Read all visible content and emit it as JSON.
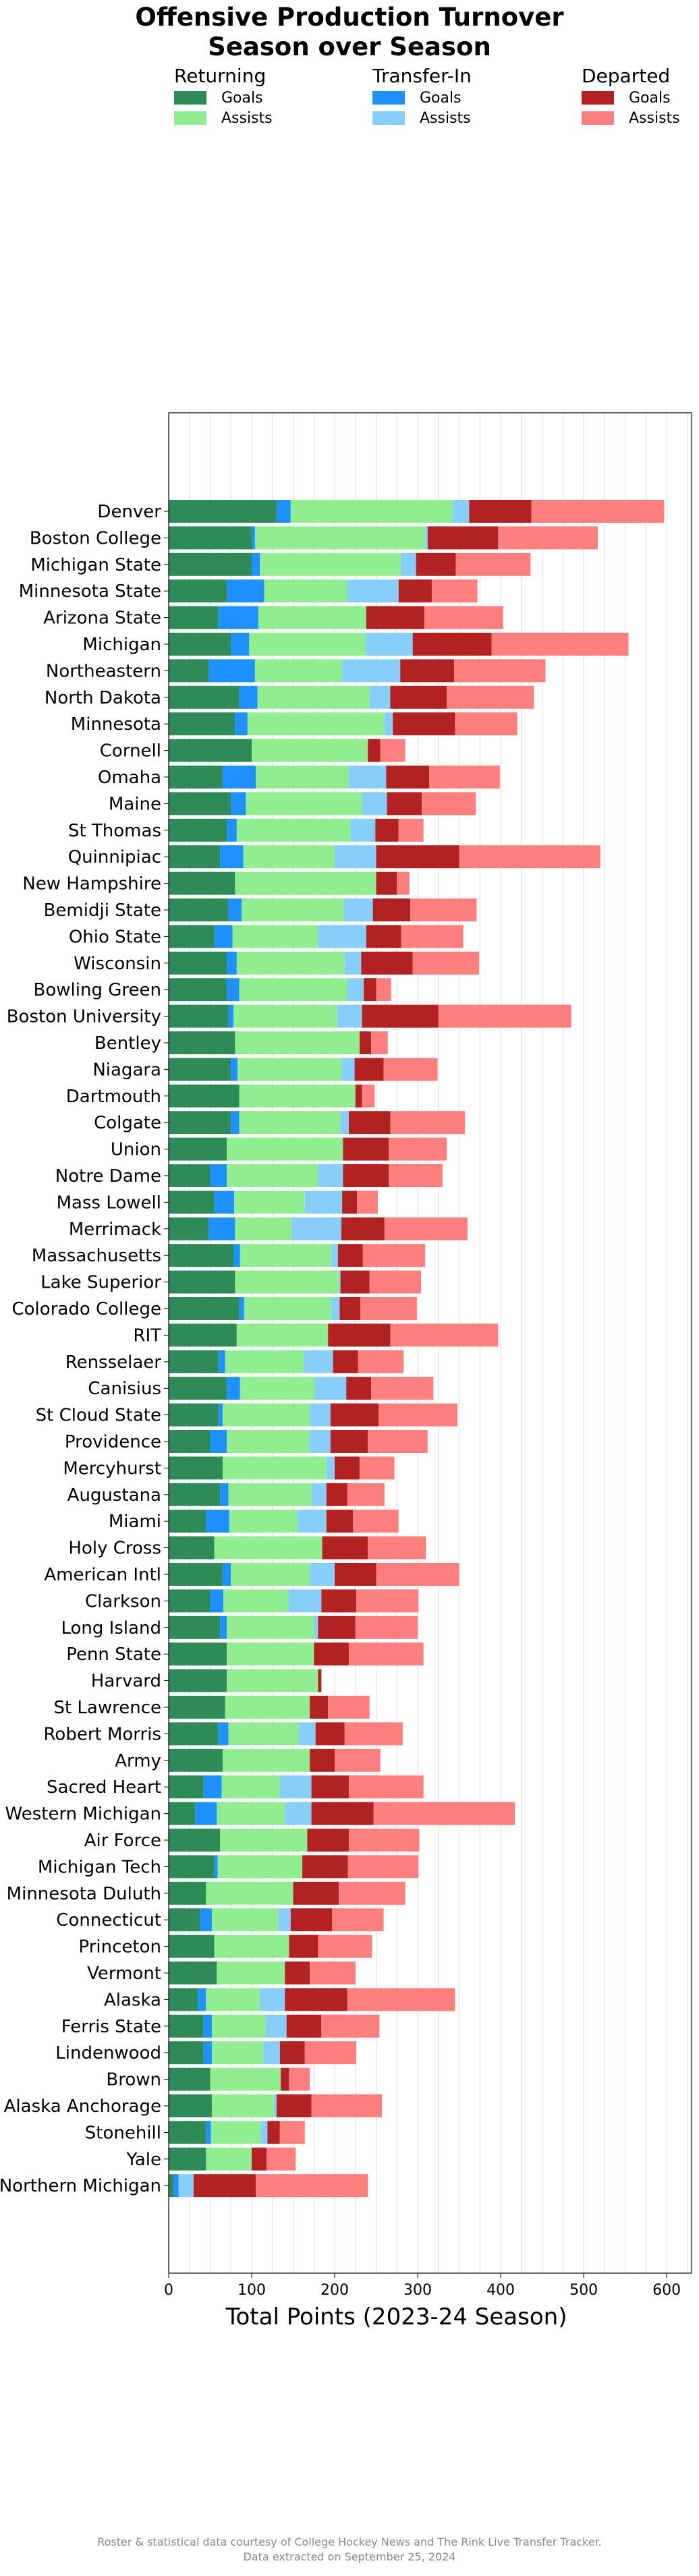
{
  "title_line1": "Offensive Production Turnover",
  "title_line2": "Season over Season",
  "legend": {
    "groups": [
      {
        "title": "Returning",
        "goals_label": "Goals",
        "assists_label": "Assists",
        "goals_color": "#2e8b57",
        "assists_color": "#90ee90"
      },
      {
        "title": "Transfer-In",
        "goals_label": "Goals",
        "assists_label": "Assists",
        "goals_color": "#1e90ff",
        "assists_color": "#87cefa"
      },
      {
        "title": "Departed",
        "goals_label": "Goals",
        "assists_label": "Assists",
        "goals_color": "#b22222",
        "assists_color": "#ff7f7f"
      }
    ]
  },
  "credit_line1": "Roster & statistical data courtesy of College Hockey News and The Rink Live Transfer Tracker.",
  "credit_line2": "Data extracted on September 25, 2024",
  "chart_data": {
    "type": "bar",
    "orientation": "horizontal",
    "stacked": true,
    "title": "Offensive Production Turnover Season over Season",
    "xlabel": "Total Points (2023-24 Season)",
    "ylabel": "",
    "xlim": [
      0,
      630
    ],
    "xticks": [
      0,
      100,
      200,
      300,
      400,
      500,
      600
    ],
    "grid": "vertical",
    "legend_position": "top",
    "categories": [
      "Denver",
      "Boston College",
      "Michigan State",
      "Minnesota State",
      "Arizona State",
      "Michigan",
      "Northeastern",
      "North Dakota",
      "Minnesota",
      "Cornell",
      "Omaha",
      "Maine",
      "St Thomas",
      "Quinnipiac",
      "New Hampshire",
      "Bemidji State",
      "Ohio State",
      "Wisconsin",
      "Bowling Green",
      "Boston University",
      "Bentley",
      "Niagara",
      "Dartmouth",
      "Colgate",
      "Union",
      "Notre Dame",
      "Mass Lowell",
      "Merrimack",
      "Massachusetts",
      "Lake Superior",
      "Colorado College",
      "RIT",
      "Rensselaer",
      "Canisius",
      "St Cloud State",
      "Providence",
      "Mercyhurst",
      "Augustana",
      "Miami",
      "Holy Cross",
      "American Intl",
      "Clarkson",
      "Long Island",
      "Penn State",
      "Harvard",
      "St Lawrence",
      "Robert Morris",
      "Army",
      "Sacred Heart",
      "Western Michigan",
      "Air Force",
      "Michigan Tech",
      "Minnesota Duluth",
      "Connecticut",
      "Princeton",
      "Vermont",
      "Alaska",
      "Ferris State",
      "Lindenwood",
      "Brown",
      "Alaska Anchorage",
      "Stonehill",
      "Yale",
      "Northern Michigan"
    ],
    "series": [
      {
        "name": "Returning Goals",
        "color": "#2e8b57",
        "values": [
          130,
          100,
          100,
          70,
          60,
          75,
          48,
          85,
          80,
          100,
          65,
          75,
          70,
          62,
          80,
          72,
          55,
          70,
          70,
          72,
          80,
          75,
          85,
          75,
          70,
          50,
          55,
          48,
          78,
          80,
          85,
          82,
          60,
          70,
          60,
          50,
          65,
          62,
          45,
          55,
          65,
          50,
          62,
          70,
          70,
          68,
          60,
          65,
          42,
          32,
          62,
          55,
          45,
          38,
          55,
          58,
          35,
          42,
          42,
          50,
          52,
          45,
          45,
          6
        ]
      },
      {
        "name": "Transfer-In Goals",
        "color": "#1e90ff",
        "values": [
          17,
          4,
          10,
          45,
          48,
          22,
          56,
          22,
          15,
          0,
          40,
          18,
          12,
          28,
          0,
          16,
          22,
          12,
          15,
          6,
          0,
          8,
          0,
          10,
          0,
          20,
          24,
          32,
          8,
          0,
          6,
          0,
          8,
          16,
          5,
          20,
          0,
          10,
          28,
          0,
          10,
          16,
          8,
          0,
          0,
          0,
          12,
          0,
          22,
          26,
          0,
          4,
          0,
          14,
          0,
          0,
          10,
          10,
          10,
          0,
          0,
          6,
          0,
          6
        ]
      },
      {
        "name": "Returning Assists",
        "color": "#90ee90",
        "values": [
          195,
          205,
          170,
          100,
          130,
          140,
          105,
          135,
          165,
          140,
          112,
          140,
          137,
          110,
          170,
          123,
          103,
          130,
          130,
          125,
          150,
          125,
          140,
          122,
          140,
          110,
          85,
          68,
          110,
          125,
          105,
          110,
          95,
          90,
          105,
          100,
          125,
          100,
          82,
          130,
          95,
          78,
          105,
          105,
          110,
          102,
          85,
          105,
          70,
          82,
          105,
          102,
          105,
          80,
          90,
          82,
          65,
          65,
          62,
          85,
          75,
          60,
          55,
          0
        ]
      },
      {
        "name": "Transfer-In Assists",
        "color": "#87cefa",
        "values": [
          20,
          3,
          18,
          62,
          0,
          57,
          70,
          25,
          10,
          0,
          45,
          30,
          30,
          50,
          0,
          35,
          58,
          20,
          20,
          30,
          0,
          16,
          0,
          10,
          0,
          30,
          45,
          60,
          8,
          2,
          10,
          0,
          35,
          38,
          25,
          25,
          10,
          18,
          35,
          0,
          30,
          40,
          5,
          0,
          0,
          0,
          20,
          0,
          38,
          32,
          0,
          0,
          0,
          15,
          0,
          0,
          30,
          25,
          20,
          0,
          3,
          8,
          0,
          18
        ]
      },
      {
        "name": "Departed Goals",
        "color": "#b22222",
        "values": [
          75,
          85,
          48,
          40,
          70,
          95,
          65,
          68,
          75,
          15,
          52,
          42,
          28,
          100,
          25,
          45,
          42,
          62,
          15,
          92,
          14,
          35,
          8,
          50,
          55,
          55,
          18,
          52,
          30,
          35,
          25,
          75,
          30,
          30,
          58,
          45,
          30,
          25,
          32,
          55,
          50,
          42,
          45,
          42,
          4,
          22,
          35,
          30,
          45,
          75,
          50,
          55,
          55,
          50,
          35,
          30,
          75,
          42,
          30,
          10,
          42,
          15,
          18,
          75
        ]
      },
      {
        "name": "Departed Assists",
        "color": "#ff7f7f",
        "values": [
          160,
          120,
          90,
          55,
          95,
          165,
          110,
          105,
          75,
          30,
          85,
          65,
          30,
          170,
          15,
          80,
          75,
          80,
          18,
          160,
          20,
          65,
          15,
          90,
          70,
          65,
          25,
          100,
          75,
          62,
          68,
          130,
          55,
          75,
          95,
          72,
          42,
          45,
          55,
          70,
          100,
          75,
          75,
          90,
          0,
          50,
          70,
          55,
          90,
          170,
          85,
          85,
          80,
          62,
          65,
          55,
          130,
          70,
          62,
          25,
          85,
          30,
          35,
          135
        ]
      }
    ]
  }
}
